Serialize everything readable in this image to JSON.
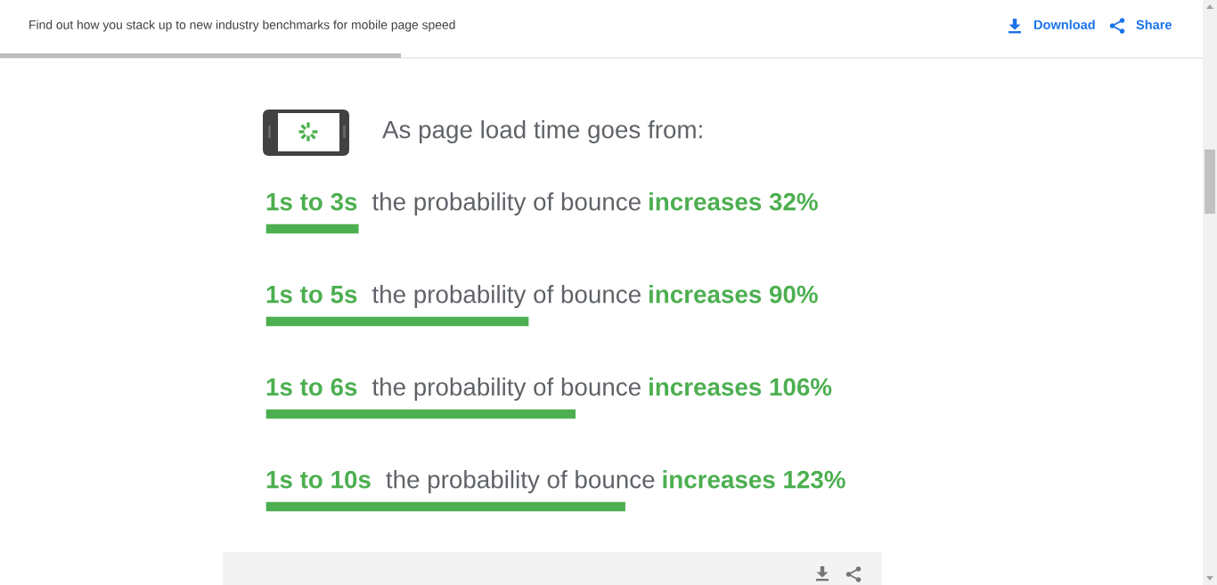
{
  "chart_data": {
    "type": "bar",
    "orientation": "horizontal",
    "title": "As page load time goes from:",
    "categories": [
      "1s to 3s",
      "1s to 5s",
      "1s to 6s",
      "1s to 10s"
    ],
    "values": [
      32,
      90,
      106,
      123
    ],
    "color": "#4caf50",
    "value_labels": [
      "the probability of bounce increases 32%",
      "the probability of bounce increases 90%",
      "the probability of bounce increases 106%",
      "the probability of bounce increases 123%"
    ],
    "tick_labels": "y",
    "annotations": [
      "Find out how you stack up to new industry benchmarks for mobile page speed",
      "Download",
      "Share"
    ]
  }
}
